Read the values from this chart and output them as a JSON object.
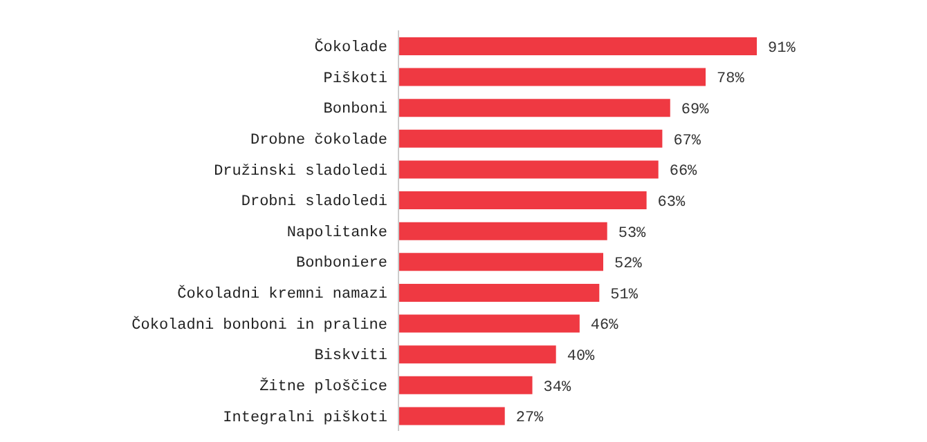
{
  "chart_data": {
    "type": "bar",
    "orientation": "horizontal",
    "categories": [
      "Čokolade",
      "Piškoti",
      "Bonboni",
      "Drobne čokolade",
      "Družinski sladoledi",
      "Drobni sladoledi",
      "Napolitanke",
      "Bonboniere",
      "Čokoladni kremni namazi",
      "Čokoladni bonboni in praline",
      "Biskviti",
      "Žitne ploščice",
      "Integralni piškoti"
    ],
    "values": [
      91,
      78,
      69,
      67,
      66,
      63,
      53,
      52,
      51,
      46,
      40,
      34,
      27
    ],
    "value_labels": [
      "91%",
      "78%",
      "69%",
      "67%",
      "66%",
      "63%",
      "53%",
      "52%",
      "51%",
      "46%",
      "40%",
      "34%",
      "27%"
    ],
    "color": "#ef3942",
    "grid": false,
    "legend": false
  }
}
